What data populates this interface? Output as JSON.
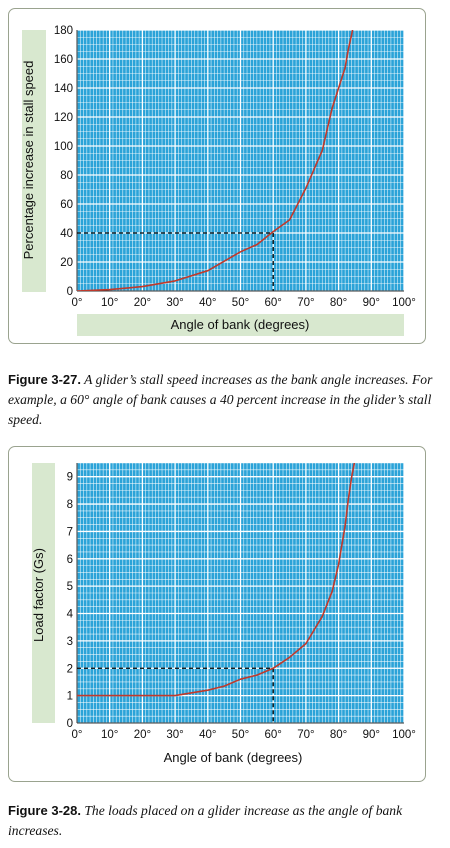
{
  "charts": [
    {
      "caption_label": "Figure 3-27.",
      "caption_text": " A glider’s stall speed increases as the bank angle increases. For example, a 60° angle of bank causes a 40 percent increase in the glider’s stall speed."
    },
    {
      "caption_label": "Figure 3-28.",
      "caption_text": " The loads placed on a glider increase as the angle of bank increases."
    }
  ],
  "colors": {
    "plot_bg": "#2ba3d8",
    "grid_minor": "#ffffff",
    "curve": "#c0392b",
    "label_bg": "#d8e8cf",
    "reference_line": "#000000"
  },
  "chart_data": [
    {
      "type": "line",
      "title": "",
      "xlabel": "Angle of bank (degrees)",
      "ylabel": "Percentage increase in stall speed",
      "xlim": [
        0,
        100
      ],
      "ylim": [
        0,
        180
      ],
      "xticks": [
        "0°",
        "10°",
        "20°",
        "30°",
        "40°",
        "50°",
        "60°",
        "70°",
        "80°",
        "90°",
        "100°"
      ],
      "yticks": [
        "0",
        "20",
        "40",
        "60",
        "80",
        "100",
        "120",
        "140",
        "160",
        "180"
      ],
      "x": [
        0,
        10,
        20,
        30,
        40,
        50,
        55,
        60,
        65,
        70,
        75,
        78,
        80,
        82,
        83,
        84,
        84.5,
        85
      ],
      "y": [
        0,
        1,
        3,
        7,
        14,
        27,
        32,
        41,
        49,
        71,
        97,
        126,
        140,
        154,
        167,
        177,
        183,
        190
      ],
      "reference": {
        "x": 60,
        "y": 40
      },
      "grid": true
    },
    {
      "type": "line",
      "title": "",
      "xlabel": "Angle of bank (degrees)",
      "ylabel": "Load factor (Gs)",
      "xlim": [
        0,
        100
      ],
      "ylim": [
        0,
        9.5
      ],
      "xticks": [
        "0°",
        "10°",
        "20°",
        "30°",
        "40°",
        "50°",
        "60°",
        "70°",
        "80°",
        "90°",
        "100°"
      ],
      "yticks": [
        "0",
        "1",
        "2",
        "3",
        "4",
        "5",
        "6",
        "7",
        "8",
        "9"
      ],
      "x": [
        0,
        10,
        20,
        30,
        40,
        45,
        50,
        55,
        60,
        65,
        70,
        75,
        78,
        80,
        82,
        83,
        84,
        85
      ],
      "y": [
        1,
        1,
        1,
        1,
        1.2,
        1.35,
        1.6,
        1.75,
        2,
        2.4,
        2.9,
        3.9,
        4.8,
        5.8,
        7.2,
        8.2,
        9.0,
        9.6
      ],
      "reference": {
        "x": 60,
        "y": 2
      },
      "grid": true
    }
  ]
}
